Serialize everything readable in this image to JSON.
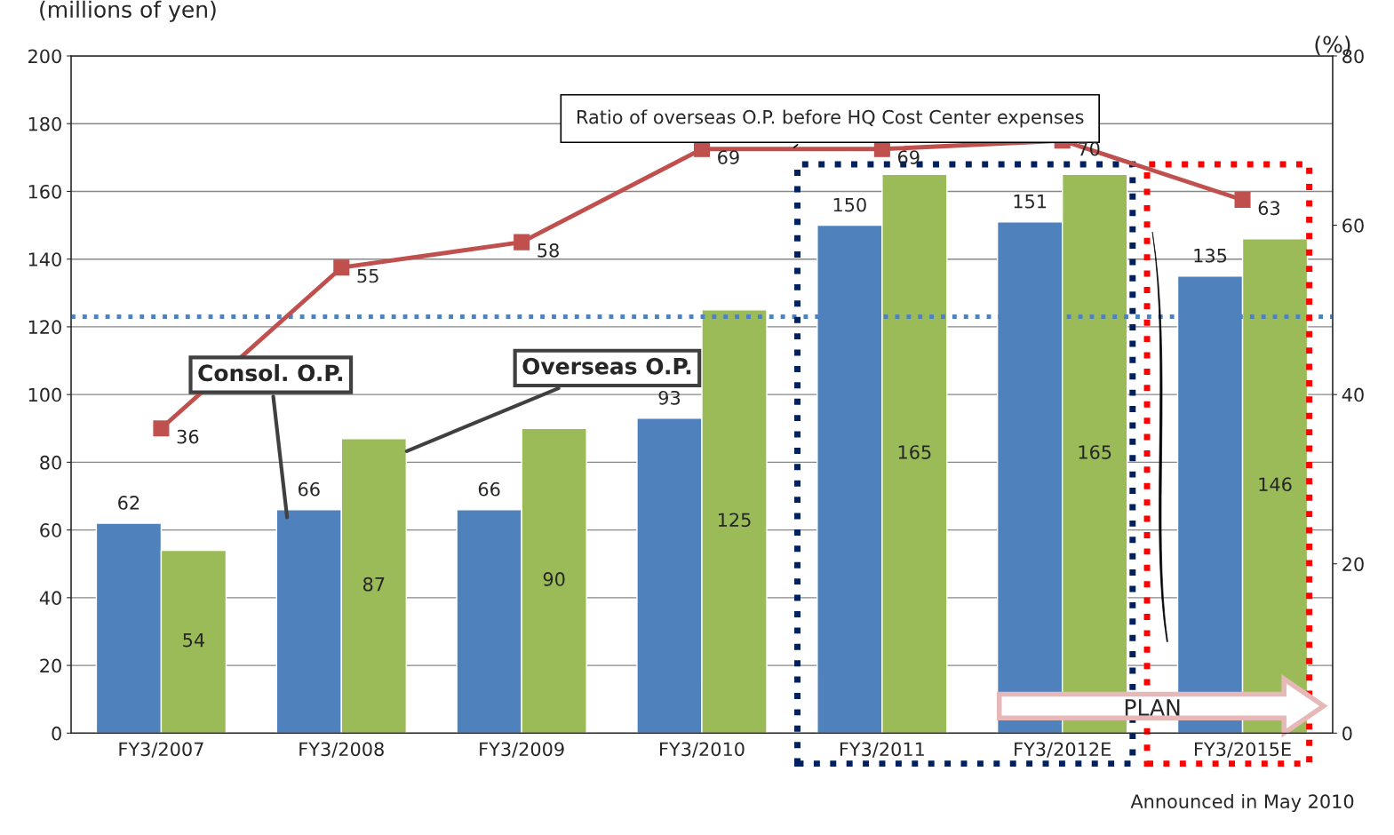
{
  "chart_data": {
    "type": "bar",
    "categories": [
      "FY3/2007",
      "FY3/2008",
      "FY3/2009",
      "FY3/2010",
      "FY3/2011",
      "FY3/2012E",
      "FY3/2015E"
    ],
    "series": [
      {
        "name": "Consol. O.P.",
        "color": "#4f81bd",
        "values": [
          62,
          66,
          66,
          93,
          150,
          151,
          135
        ]
      },
      {
        "name": "Overseas O.P.",
        "color": "#9bbb59",
        "values": [
          54,
          87,
          90,
          125,
          165,
          165,
          146
        ]
      },
      {
        "name": "Ratio of overseas O.P. before HQ Cost Center expenses",
        "type": "line",
        "axis": "y2",
        "color": "#c0504d",
        "marker": "square",
        "values": [
          36,
          55,
          58,
          69,
          69,
          70,
          63
        ]
      }
    ],
    "ylabel": "(millions of yen)",
    "y2label": "(%)",
    "ylim": [
      0,
      200
    ],
    "yticks": [
      0,
      20,
      40,
      60,
      80,
      100,
      120,
      140,
      160,
      180,
      200
    ],
    "y2lim": [
      0,
      80
    ],
    "y2ticks": [
      0,
      20,
      40,
      60,
      80
    ],
    "grid": "y",
    "data_labels": true,
    "ref_lines": [
      {
        "axis": "y",
        "value": 123,
        "color": "#4f81bd",
        "line_style": "dotted"
      }
    ],
    "annotations": [
      "PLAN",
      "Announced in May 2010"
    ]
  }
}
